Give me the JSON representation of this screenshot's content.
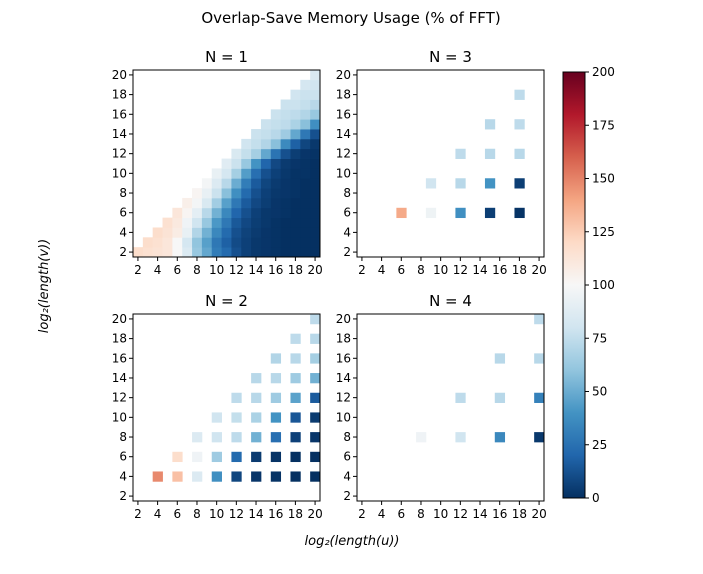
{
  "title": "Overlap-Save Memory Usage  (% of FFT)",
  "xlabel": "log₂(length(u))",
  "ylabel": "log₂(length(v))",
  "colorbar": {
    "colormap": "RdBu_r",
    "min": 0,
    "max": 200,
    "ticks": [
      "0",
      "25",
      "50",
      "75",
      "100",
      "125",
      "150",
      "175",
      "200"
    ],
    "stops": [
      "#053061",
      "#2166ac",
      "#4393c3",
      "#92c5de",
      "#d1e5f0",
      "#f7f7f7",
      "#fddbc7",
      "#f4a582",
      "#d6604d",
      "#b2182b",
      "#67001f"
    ]
  },
  "chart_data": [
    {
      "type": "heatmap",
      "title": "N = 1",
      "x_ticks": [
        2,
        4,
        6,
        8,
        10,
        12,
        14,
        16,
        18,
        20
      ],
      "y_ticks": [
        2,
        4,
        6,
        8,
        10,
        12,
        14,
        16,
        18,
        20
      ],
      "xlim": [
        2,
        20
      ],
      "ylim": [
        2,
        20
      ],
      "cells": [
        [
          2,
          2,
          118
        ],
        [
          3,
          2,
          116
        ],
        [
          4,
          2,
          114
        ],
        [
          5,
          2,
          112
        ],
        [
          6,
          2,
          100
        ],
        [
          7,
          2,
          85
        ],
        [
          8,
          2,
          62
        ],
        [
          9,
          2,
          48
        ],
        [
          10,
          2,
          30
        ],
        [
          11,
          2,
          22
        ],
        [
          12,
          2,
          12
        ],
        [
          13,
          2,
          6
        ],
        [
          14,
          2,
          3
        ],
        [
          15,
          2,
          2
        ],
        [
          16,
          2,
          1
        ],
        [
          17,
          2,
          0
        ],
        [
          18,
          2,
          0
        ],
        [
          19,
          2,
          0
        ],
        [
          20,
          2,
          0
        ],
        [
          3,
          3,
          118
        ],
        [
          4,
          3,
          116
        ],
        [
          5,
          3,
          112
        ],
        [
          6,
          3,
          100
        ],
        [
          7,
          3,
          82
        ],
        [
          8,
          3,
          60
        ],
        [
          9,
          3,
          45
        ],
        [
          10,
          3,
          28
        ],
        [
          11,
          3,
          18
        ],
        [
          12,
          3,
          10
        ],
        [
          13,
          3,
          6
        ],
        [
          14,
          3,
          3
        ],
        [
          15,
          3,
          2
        ],
        [
          16,
          3,
          1
        ],
        [
          17,
          3,
          0
        ],
        [
          18,
          3,
          0
        ],
        [
          19,
          3,
          0
        ],
        [
          20,
          3,
          0
        ],
        [
          4,
          4,
          118
        ],
        [
          5,
          4,
          114
        ],
        [
          6,
          4,
          108
        ],
        [
          7,
          4,
          92
        ],
        [
          8,
          4,
          70
        ],
        [
          9,
          4,
          52
        ],
        [
          10,
          4,
          35
        ],
        [
          11,
          4,
          22
        ],
        [
          12,
          4,
          12
        ],
        [
          13,
          4,
          7
        ],
        [
          14,
          4,
          4
        ],
        [
          15,
          4,
          2
        ],
        [
          16,
          4,
          1
        ],
        [
          17,
          4,
          0
        ],
        [
          18,
          4,
          0
        ],
        [
          19,
          4,
          0
        ],
        [
          20,
          4,
          0
        ],
        [
          5,
          5,
          116
        ],
        [
          6,
          5,
          110
        ],
        [
          7,
          5,
          96
        ],
        [
          8,
          5,
          80
        ],
        [
          9,
          5,
          62
        ],
        [
          10,
          5,
          42
        ],
        [
          11,
          5,
          28
        ],
        [
          12,
          5,
          15
        ],
        [
          13,
          5,
          9
        ],
        [
          14,
          5,
          5
        ],
        [
          15,
          5,
          3
        ],
        [
          16,
          5,
          1
        ],
        [
          17,
          5,
          0
        ],
        [
          18,
          5,
          0
        ],
        [
          19,
          5,
          0
        ],
        [
          20,
          5,
          0
        ],
        [
          6,
          6,
          112
        ],
        [
          7,
          6,
          102
        ],
        [
          8,
          6,
          90
        ],
        [
          9,
          6,
          72
        ],
        [
          10,
          6,
          52
        ],
        [
          11,
          6,
          35
        ],
        [
          12,
          6,
          20
        ],
        [
          13,
          6,
          12
        ],
        [
          14,
          6,
          6
        ],
        [
          15,
          6,
          3
        ],
        [
          16,
          6,
          2
        ],
        [
          17,
          6,
          1
        ],
        [
          18,
          6,
          0
        ],
        [
          19,
          6,
          0
        ],
        [
          20,
          6,
          0
        ],
        [
          7,
          7,
          106
        ],
        [
          8,
          7,
          98
        ],
        [
          9,
          7,
          84
        ],
        [
          10,
          7,
          65
        ],
        [
          11,
          7,
          45
        ],
        [
          12,
          7,
          28
        ],
        [
          13,
          7,
          16
        ],
        [
          14,
          7,
          9
        ],
        [
          15,
          7,
          5
        ],
        [
          16,
          7,
          2
        ],
        [
          17,
          7,
          1
        ],
        [
          18,
          7,
          0
        ],
        [
          19,
          7,
          0
        ],
        [
          20,
          7,
          0
        ],
        [
          8,
          8,
          102
        ],
        [
          9,
          8,
          92
        ],
        [
          10,
          8,
          78
        ],
        [
          11,
          8,
          58
        ],
        [
          12,
          8,
          38
        ],
        [
          13,
          8,
          22
        ],
        [
          14,
          8,
          12
        ],
        [
          15,
          8,
          6
        ],
        [
          16,
          8,
          3
        ],
        [
          17,
          8,
          2
        ],
        [
          18,
          8,
          1
        ],
        [
          19,
          8,
          0
        ],
        [
          20,
          8,
          0
        ],
        [
          9,
          9,
          98
        ],
        [
          10,
          9,
          86
        ],
        [
          11,
          9,
          72
        ],
        [
          12,
          9,
          50
        ],
        [
          13,
          9,
          30
        ],
        [
          14,
          9,
          16
        ],
        [
          15,
          9,
          8
        ],
        [
          16,
          9,
          4
        ],
        [
          17,
          9,
          2
        ],
        [
          18,
          9,
          1
        ],
        [
          19,
          9,
          0
        ],
        [
          20,
          9,
          0
        ],
        [
          10,
          10,
          92
        ],
        [
          11,
          10,
          82
        ],
        [
          12,
          10,
          66
        ],
        [
          13,
          10,
          44
        ],
        [
          14,
          10,
          24
        ],
        [
          15,
          10,
          12
        ],
        [
          16,
          10,
          6
        ],
        [
          17,
          10,
          3
        ],
        [
          18,
          10,
          1
        ],
        [
          19,
          10,
          1
        ],
        [
          20,
          10,
          0
        ],
        [
          11,
          11,
          88
        ],
        [
          12,
          11,
          78
        ],
        [
          13,
          11,
          62
        ],
        [
          14,
          11,
          40
        ],
        [
          15,
          11,
          20
        ],
        [
          16,
          11,
          9
        ],
        [
          17,
          11,
          4
        ],
        [
          18,
          11,
          2
        ],
        [
          19,
          11,
          1
        ],
        [
          20,
          11,
          0
        ],
        [
          12,
          12,
          84
        ],
        [
          13,
          12,
          76
        ],
        [
          14,
          12,
          66
        ],
        [
          15,
          12,
          48
        ],
        [
          16,
          12,
          26
        ],
        [
          17,
          12,
          12
        ],
        [
          18,
          12,
          5
        ],
        [
          19,
          12,
          2
        ],
        [
          20,
          12,
          1
        ],
        [
          13,
          13,
          80
        ],
        [
          14,
          13,
          76
        ],
        [
          15,
          13,
          70
        ],
        [
          16,
          13,
          58
        ],
        [
          17,
          13,
          36
        ],
        [
          18,
          13,
          18
        ],
        [
          19,
          13,
          8
        ],
        [
          20,
          13,
          3
        ],
        [
          14,
          14,
          78
        ],
        [
          15,
          14,
          76
        ],
        [
          16,
          14,
          72
        ],
        [
          17,
          14,
          64
        ],
        [
          18,
          14,
          48
        ],
        [
          19,
          14,
          28
        ],
        [
          20,
          14,
          12
        ],
        [
          15,
          15,
          78
        ],
        [
          16,
          15,
          76
        ],
        [
          17,
          15,
          74
        ],
        [
          18,
          15,
          68
        ],
        [
          19,
          15,
          58
        ],
        [
          20,
          15,
          38
        ],
        [
          16,
          16,
          78
        ],
        [
          17,
          16,
          76
        ],
        [
          18,
          16,
          74
        ],
        [
          19,
          16,
          70
        ],
        [
          20,
          16,
          62
        ],
        [
          17,
          17,
          78
        ],
        [
          18,
          17,
          78
        ],
        [
          19,
          17,
          76
        ],
        [
          20,
          17,
          72
        ],
        [
          18,
          18,
          80
        ],
        [
          19,
          18,
          78
        ],
        [
          20,
          18,
          78
        ],
        [
          19,
          19,
          82
        ],
        [
          20,
          19,
          80
        ],
        [
          20,
          20,
          84
        ]
      ]
    },
    {
      "type": "heatmap",
      "title": "N = 3",
      "x_ticks": [
        2,
        4,
        6,
        8,
        10,
        12,
        14,
        16,
        18,
        20
      ],
      "y_ticks": [
        2,
        4,
        6,
        8,
        10,
        12,
        14,
        16,
        18,
        20
      ],
      "xlim": [
        2,
        20
      ],
      "ylim": [
        2,
        20
      ],
      "cells": [
        [
          6,
          6,
          138
        ],
        [
          9,
          6,
          95
        ],
        [
          12,
          6,
          38
        ],
        [
          15,
          6,
          5
        ],
        [
          18,
          6,
          1
        ],
        [
          9,
          9,
          80
        ],
        [
          12,
          9,
          72
        ],
        [
          15,
          9,
          40
        ],
        [
          18,
          9,
          5
        ],
        [
          12,
          12,
          74
        ],
        [
          15,
          12,
          72
        ],
        [
          18,
          12,
          72
        ],
        [
          15,
          15,
          72
        ],
        [
          18,
          15,
          74
        ],
        [
          18,
          18,
          74
        ]
      ]
    },
    {
      "type": "heatmap",
      "title": "N = 2",
      "x_ticks": [
        2,
        4,
        6,
        8,
        10,
        12,
        14,
        16,
        18,
        20
      ],
      "y_ticks": [
        2,
        4,
        6,
        8,
        10,
        12,
        14,
        16,
        18,
        20
      ],
      "xlim": [
        2,
        20
      ],
      "ylim": [
        2,
        20
      ],
      "cells": [
        [
          4,
          4,
          148
        ],
        [
          6,
          4,
          130
        ],
        [
          8,
          4,
          86
        ],
        [
          10,
          4,
          38
        ],
        [
          12,
          4,
          8
        ],
        [
          14,
          4,
          2
        ],
        [
          16,
          4,
          1
        ],
        [
          18,
          4,
          0
        ],
        [
          20,
          4,
          0
        ],
        [
          6,
          6,
          118
        ],
        [
          8,
          6,
          96
        ],
        [
          10,
          6,
          64
        ],
        [
          12,
          6,
          22
        ],
        [
          14,
          6,
          4
        ],
        [
          16,
          6,
          1
        ],
        [
          18,
          6,
          0
        ],
        [
          20,
          6,
          0
        ],
        [
          8,
          8,
          86
        ],
        [
          10,
          8,
          80
        ],
        [
          12,
          8,
          74
        ],
        [
          14,
          8,
          52
        ],
        [
          16,
          8,
          24
        ],
        [
          18,
          8,
          6
        ],
        [
          20,
          8,
          2
        ],
        [
          10,
          10,
          80
        ],
        [
          12,
          10,
          76
        ],
        [
          14,
          10,
          68
        ],
        [
          16,
          10,
          40
        ],
        [
          18,
          10,
          14
        ],
        [
          20,
          10,
          4
        ],
        [
          12,
          12,
          74
        ],
        [
          14,
          12,
          72
        ],
        [
          16,
          12,
          64
        ],
        [
          18,
          12,
          46
        ],
        [
          20,
          12,
          16
        ],
        [
          14,
          14,
          72
        ],
        [
          16,
          14,
          72
        ],
        [
          18,
          14,
          64
        ],
        [
          20,
          14,
          52
        ],
        [
          16,
          16,
          70
        ],
        [
          18,
          16,
          72
        ],
        [
          20,
          16,
          66
        ],
        [
          18,
          18,
          74
        ],
        [
          20,
          18,
          72
        ],
        [
          20,
          20,
          74
        ]
      ]
    },
    {
      "type": "heatmap",
      "title": "N = 4",
      "x_ticks": [
        2,
        4,
        6,
        8,
        10,
        12,
        14,
        16,
        18,
        20
      ],
      "y_ticks": [
        2,
        4,
        6,
        8,
        10,
        12,
        14,
        16,
        18,
        20
      ],
      "xlim": [
        2,
        20
      ],
      "ylim": [
        2,
        20
      ],
      "cells": [
        [
          8,
          8,
          96
        ],
        [
          12,
          8,
          80
        ],
        [
          16,
          8,
          35
        ],
        [
          20,
          8,
          3
        ],
        [
          12,
          12,
          74
        ],
        [
          16,
          12,
          72
        ],
        [
          20,
          12,
          32
        ],
        [
          16,
          16,
          72
        ],
        [
          20,
          16,
          72
        ],
        [
          20,
          20,
          74
        ]
      ]
    }
  ]
}
